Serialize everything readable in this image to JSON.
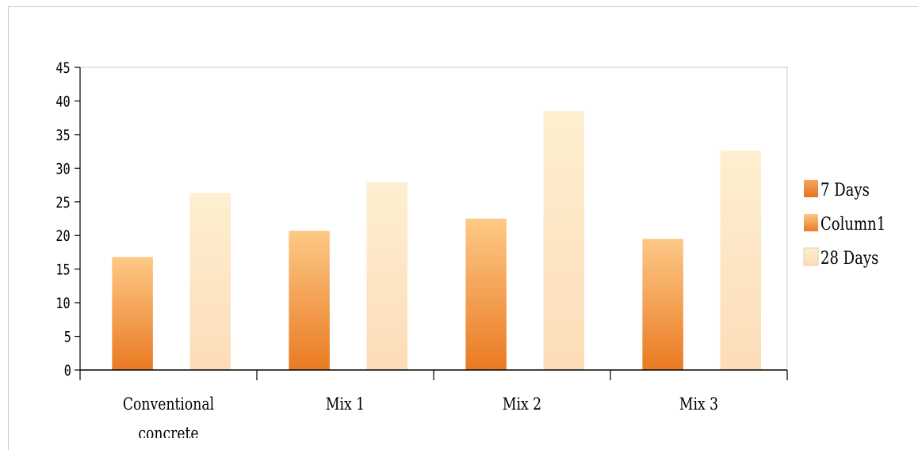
{
  "chart_data": {
    "type": "bar",
    "title": "",
    "xlabel": "",
    "ylabel": "",
    "categories": [
      "Conventional concrete",
      "Mix 1",
      "Mix 2",
      "Mix 3"
    ],
    "ylim": [
      0,
      45
    ],
    "yticks": [
      0,
      5,
      10,
      15,
      20,
      25,
      30,
      35,
      40,
      45
    ],
    "grid": false,
    "legend_position": "right",
    "series": [
      {
        "name": "7 Days",
        "values": [
          null,
          null,
          null,
          null
        ],
        "color_top": "#f4a460",
        "color_bottom": "#e8721e"
      },
      {
        "name": "Column1",
        "values": [
          16.8,
          20.7,
          22.5,
          19.5
        ],
        "color_top": "#fdc987",
        "color_bottom": "#ea7a22"
      },
      {
        "name": "28 Days",
        "values": [
          26.3,
          27.9,
          38.5,
          32.6
        ],
        "color_top": "#fdefd0",
        "color_bottom": "#fddcb8"
      }
    ]
  }
}
